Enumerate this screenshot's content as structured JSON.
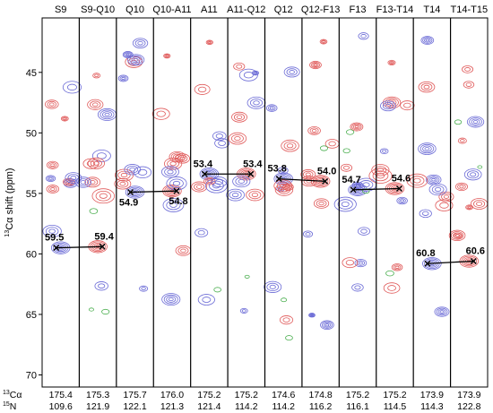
{
  "chart_data": {
    "type": "contour-strips",
    "title": "",
    "ylabel": {
      "superscript": "13",
      "text": "Cα shift  (ppm)"
    },
    "y_ticks": [
      45,
      50,
      55,
      60,
      65,
      70
    ],
    "ylim": [
      40.5,
      71
    ],
    "y_inverted": true,
    "strips": [
      {
        "label": "S9",
        "c": "175.4",
        "n": "109.6"
      },
      {
        "label": "S9-Q10",
        "c": "175.3",
        "n": "121.9"
      },
      {
        "label": "Q10",
        "c": "175.7",
        "n": "122.1"
      },
      {
        "label": "Q10-A11",
        "c": "176.0",
        "n": "121.3"
      },
      {
        "label": "A11",
        "c": "175.2",
        "n": "121.4"
      },
      {
        "label": "A11-Q12",
        "c": "175.2",
        "n": "114.2"
      },
      {
        "label": "Q12",
        "c": "174.6",
        "n": "114.2"
      },
      {
        "label": "Q12-F13",
        "c": "174.8",
        "n": "116.2"
      },
      {
        "label": "F13",
        "c": "175.2",
        "n": "116.1"
      },
      {
        "label": "F13-T14",
        "c": "175.2",
        "n": "114.5"
      },
      {
        "label": "T14",
        "c": "173.9",
        "n": "114.3"
      },
      {
        "label": "T14-T15",
        "c": "173.9",
        "n": "122.8"
      }
    ],
    "footer_labels": {
      "c": {
        "superscript": "13",
        "text": "Cα"
      },
      "n": {
        "superscript": "15",
        "text": "N"
      }
    },
    "connections": [
      {
        "from_strip": 0,
        "to_strip": 1,
        "from_value": 59.5,
        "to_value": 59.4
      },
      {
        "from_strip": 2,
        "to_strip": 3,
        "from_value": 54.9,
        "to_value": 54.8
      },
      {
        "from_strip": 4,
        "to_strip": 5,
        "from_value": 53.4,
        "to_value": 53.4
      },
      {
        "from_strip": 6,
        "to_strip": 7,
        "from_value": 53.8,
        "to_value": 54.0
      },
      {
        "from_strip": 8,
        "to_strip": 9,
        "from_value": 54.7,
        "to_value": 54.6
      },
      {
        "from_strip": 10,
        "to_strip": 11,
        "from_value": 60.8,
        "to_value": 60.6
      }
    ],
    "colors": {
      "blue": "#6b6bd6",
      "red": "#e05a5a",
      "green": "#4caf50",
      "line": "#000000"
    }
  }
}
